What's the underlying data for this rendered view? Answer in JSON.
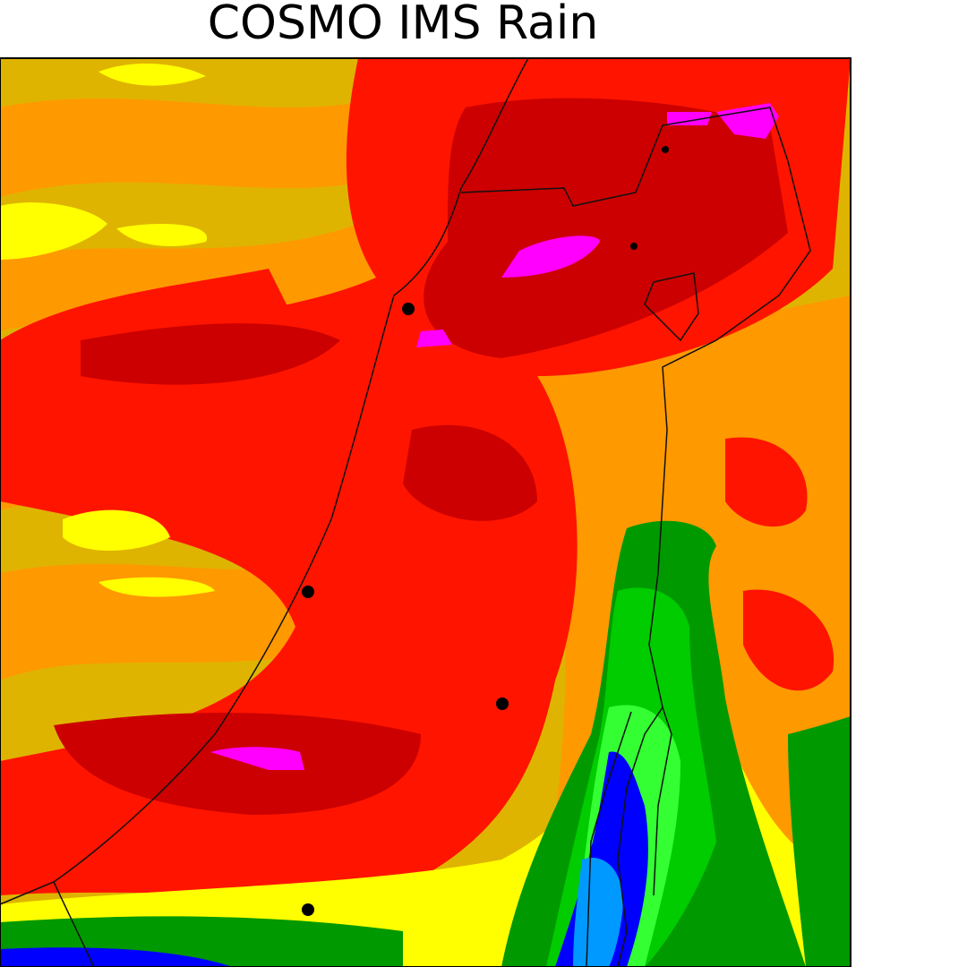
{
  "title": "COSMO IMS Rain"
}
